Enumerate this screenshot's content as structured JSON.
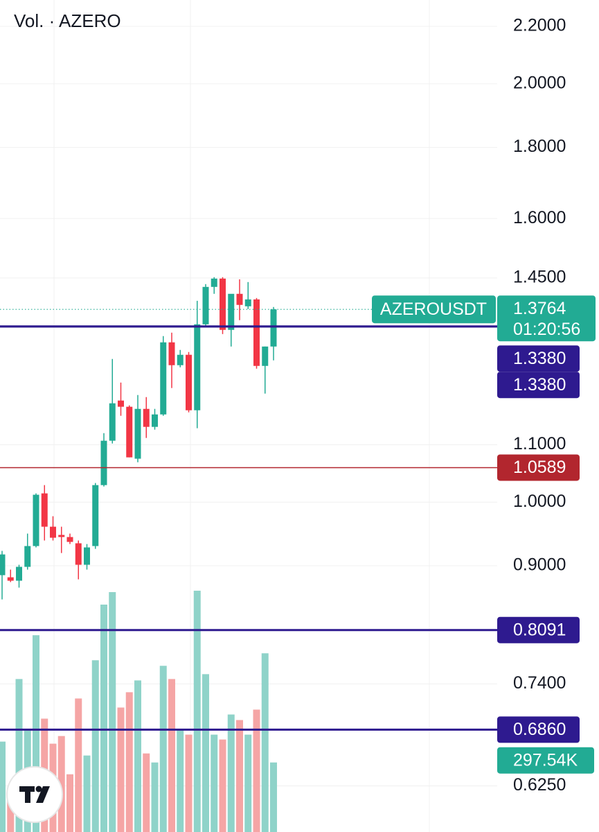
{
  "chart_data": {
    "type": "candlestick",
    "title": "Vol. · AZERO",
    "log_scale": true,
    "ylim": [
      0.579,
      2.298
    ],
    "yticks": [
      {
        "value": 2.2,
        "label": "2.2000"
      },
      {
        "value": 2.0,
        "label": "2.0000"
      },
      {
        "value": 1.8,
        "label": "1.8000"
      },
      {
        "value": 1.6,
        "label": "1.6000"
      },
      {
        "value": 1.45,
        "label": "1.4500"
      },
      {
        "value": 1.1,
        "label": "1.1000"
      },
      {
        "value": 1.0,
        "label": "1.0000"
      },
      {
        "value": 0.9,
        "label": "0.9000"
      },
      {
        "value": 0.74,
        "label": "0.7400"
      },
      {
        "value": 0.625,
        "label": "0.6250"
      }
    ],
    "grid": true,
    "up_color": "#22ab94",
    "down_color": "#f23645",
    "volume_up_color": "#8fd3c9",
    "volume_down_color": "#f5a5a5",
    "open": [
      0.8861,
      0.883,
      0.878,
      0.8984,
      0.9299,
      1.0147,
      0.9602,
      0.9472,
      0.9439,
      0.9342,
      0.9015,
      0.9299,
      1.0287,
      1.1072,
      1.1834,
      1.1713,
      1.0747,
      1.1672,
      1.1329,
      1.1565,
      1.3032,
      1.2548,
      1.2766,
      1.1645,
      1.3427,
      1.4286,
      1.4484,
      1.3304,
      1.4123,
      1.3834,
      1.3993,
      1.2533,
      1.2942
    ],
    "high": [
      0.9225,
      0.8943,
      0.9015,
      0.9493,
      1.0147,
      1.0287,
      0.977,
      0.9602,
      0.9493,
      0.9385,
      0.933,
      1.0323,
      1.1212,
      1.2678,
      1.2192,
      1.174,
      1.1943,
      1.1902,
      1.1672,
      1.3168,
      1.3243,
      1.2869,
      1.2825,
      1.3961,
      1.4352,
      1.4518,
      1.4518,
      1.4075,
      1.4467,
      1.4401,
      1.4025,
      1.2942,
      1.3818
    ],
    "low": [
      0.8512,
      0.876,
      0.868,
      0.8943,
      0.9278,
      0.9385,
      0.9385,
      0.9192,
      0.933,
      0.88,
      0.8943,
      0.9256,
      1.0263,
      1.1021,
      1.1539,
      1.0771,
      1.0684,
      1.1123,
      1.1277,
      1.1539,
      1.2082,
      1.2504,
      1.1605,
      1.1303,
      1.3366,
      1.4123,
      1.3212,
      1.2942,
      1.352,
      1.377,
      1.2476,
      1.1971,
      1.2649
    ],
    "close": [
      0.9171,
      0.878,
      0.8984,
      0.9299,
      1.0124,
      0.9602,
      0.9428,
      0.9439,
      0.9363,
      0.9015,
      0.9278,
      1.0287,
      1.1072,
      1.178,
      1.1713,
      1.0771,
      1.1672,
      1.1329,
      1.1565,
      1.3032,
      1.2548,
      1.2766,
      1.1645,
      1.3427,
      1.4286,
      1.4484,
      1.3304,
      1.4123,
      1.3866,
      1.3993,
      1.2533,
      1.2942,
      1.3764
    ],
    "volume_ylim": [
      0,
      3560000
    ],
    "volume": [
      386800,
      163600,
      654600,
      437400,
      842000,
      485000,
      377900,
      410600,
      247000,
      571300,
      327300,
      734900,
      973000,
      1026500,
      532600,
      598100,
      648600,
      336200,
      297500,
      711100,
      654600,
      437400,
      416600,
      1032500,
      675400,
      416600,
      395700,
      502800,
      479000,
      416600,
      523700,
      764700,
      297540
    ],
    "volume_value_labels": [
      null,
      null,
      null,
      null,
      null,
      null,
      null,
      null,
      null,
      null,
      null,
      null,
      null,
      null,
      null,
      null,
      null,
      null,
      null,
      null,
      null,
      null,
      null,
      null,
      null,
      null,
      null,
      null,
      null,
      null,
      null,
      null,
      "297.54K"
    ],
    "last_price": {
      "symbol": "AZEROUSDT",
      "value": 1.3764,
      "label": "1.3764",
      "countdown": "01:20:56",
      "color": "#22ab94"
    },
    "hlines": [
      {
        "value": 1.338,
        "label": "1.3380",
        "color": "#2e1a8f"
      },
      {
        "value": 1.338,
        "label": "1.3380",
        "color": "#2e1a8f"
      },
      {
        "value": 1.0589,
        "label": "1.0589",
        "color": "#b2262e"
      },
      {
        "value": 0.8091,
        "label": "0.8091",
        "color": "#2e1a8f"
      },
      {
        "value": 0.686,
        "label": "0.6860",
        "color": "#2e1a8f"
      }
    ]
  }
}
